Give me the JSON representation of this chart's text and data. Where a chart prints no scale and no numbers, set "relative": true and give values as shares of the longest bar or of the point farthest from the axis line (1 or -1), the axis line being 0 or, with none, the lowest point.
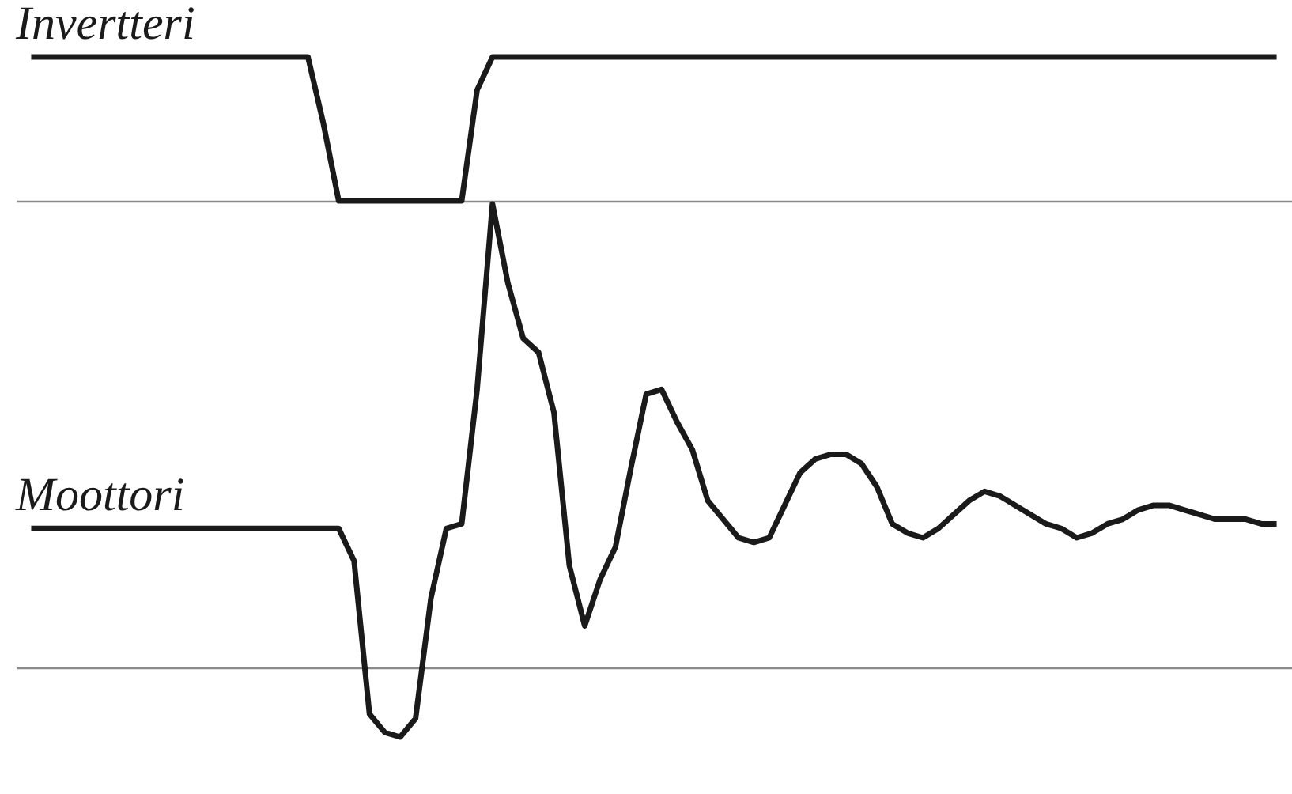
{
  "chart_data": [
    {
      "type": "line",
      "title": "Invertteri",
      "relative": true,
      "categories": [
        null,
        null,
        null,
        null,
        null,
        null,
        null,
        null,
        null,
        null,
        null,
        null,
        null,
        null,
        null,
        null,
        null,
        null,
        null,
        null,
        null,
        null,
        null,
        null,
        null,
        null,
        null,
        null,
        null,
        null,
        null,
        null,
        null,
        null,
        null,
        null,
        null,
        null,
        null,
        null,
        null,
        null,
        null,
        null,
        null,
        null,
        null,
        null,
        null,
        null,
        null,
        null,
        null,
        null,
        null,
        null,
        null,
        null,
        null,
        null,
        null,
        null,
        null,
        null,
        null,
        null,
        null,
        null,
        null,
        null,
        null,
        null,
        null,
        null,
        null,
        null,
        null,
        null,
        null,
        null,
        null,
        null
      ],
      "series": [
        {
          "color": "#1a1a1a",
          "values": [
            1,
            1,
            1,
            1,
            1,
            1,
            1,
            1,
            1,
            1,
            1,
            1,
            1,
            1,
            1,
            1,
            1,
            1,
            1,
            0.54,
            0,
            0,
            0,
            0,
            0,
            0,
            0,
            0,
            0,
            0.77,
            1,
            1,
            1,
            1,
            1,
            1,
            1,
            1,
            1,
            1,
            1,
            1,
            1,
            1,
            1,
            1,
            1,
            1,
            1,
            1,
            1,
            1,
            1,
            1,
            1,
            1,
            1,
            1,
            1,
            1,
            1,
            1,
            1,
            1,
            1,
            1,
            1,
            1,
            1,
            1,
            1,
            1,
            1,
            1,
            1,
            1,
            1,
            1,
            1,
            1,
            1,
            1
          ]
        }
      ]
    },
    {
      "type": "line",
      "title": "Moottori",
      "relative": true,
      "categories": [
        null,
        null,
        null,
        null,
        null,
        null,
        null,
        null,
        null,
        null,
        null,
        null,
        null,
        null,
        null,
        null,
        null,
        null,
        null,
        null,
        null,
        null,
        null,
        null,
        null,
        null,
        null,
        null,
        null,
        null,
        null,
        null,
        null,
        null,
        null,
        null,
        null,
        null,
        null,
        null,
        null,
        null,
        null,
        null,
        null,
        null,
        null,
        null,
        null,
        null,
        null,
        null,
        null,
        null,
        null,
        null,
        null,
        null,
        null,
        null,
        null,
        null,
        null,
        null,
        null,
        null,
        null,
        null,
        null,
        null,
        null,
        null,
        null,
        null,
        null,
        null,
        null,
        null,
        null,
        null,
        null,
        null
      ],
      "series": [
        {
          "color": "#1a1a1a",
          "values": [
            0.3,
            0.3,
            0.3,
            0.3,
            0.3,
            0.3,
            0.3,
            0.3,
            0.3,
            0.3,
            0.3,
            0.3,
            0.3,
            0.3,
            0.3,
            0.3,
            0.3,
            0.3,
            0.3,
            0.3,
            0.3,
            0.23,
            -0.1,
            -0.14,
            -0.15,
            -0.11,
            0.15,
            0.3,
            0.31,
            0.6,
            1,
            0.83,
            0.71,
            0.68,
            0.55,
            0.22,
            0.09,
            0.19,
            0.26,
            0.43,
            0.59,
            0.6,
            0.53,
            0.47,
            0.36,
            0.32,
            0.28,
            0.27,
            0.28,
            0.35,
            0.42,
            0.45,
            0.46,
            0.46,
            0.44,
            0.39,
            0.31,
            0.29,
            0.28,
            0.3,
            0.33,
            0.36,
            0.38,
            0.37,
            0.35,
            0.33,
            0.31,
            0.3,
            0.28,
            0.29,
            0.31,
            0.32,
            0.34,
            0.35,
            0.35,
            0.34,
            0.33,
            0.32,
            0.32,
            0.32,
            0.31,
            0.31
          ]
        }
      ]
    }
  ]
}
